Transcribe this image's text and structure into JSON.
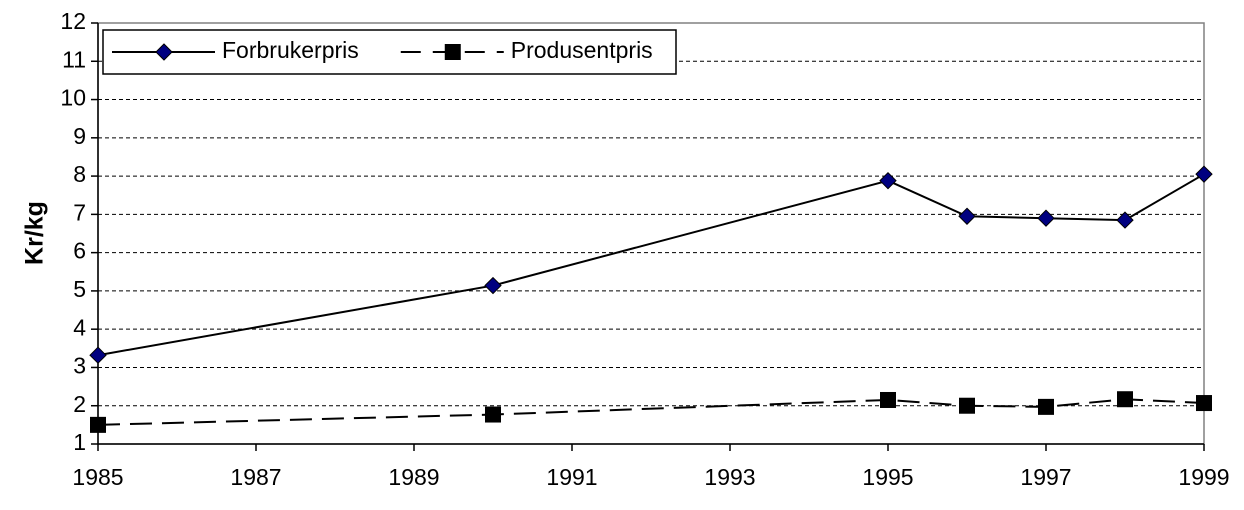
{
  "chart_data": {
    "type": "line",
    "y_label": "Kr/kg",
    "x": [
      1985,
      1990,
      1995,
      1996,
      1997,
      1998,
      1999
    ],
    "series": [
      {
        "name": "Forbrukerpris",
        "color": "#000000",
        "marker": "diamond",
        "marker_color": "#000080",
        "line_style": "solid",
        "values": [
          3.32,
          5.14,
          7.88,
          6.95,
          6.9,
          6.85,
          8.05
        ]
      },
      {
        "name": "Produsentpris",
        "color": "#000000",
        "marker": "square",
        "marker_color": "#000000",
        "line_style": "dashed",
        "values": [
          1.5,
          1.77,
          2.15,
          2.0,
          1.97,
          2.17,
          2.07
        ]
      }
    ],
    "xlim": [
      1985,
      1999
    ],
    "xticks": [
      1985,
      1987,
      1989,
      1991,
      1993,
      1995,
      1997,
      1999
    ],
    "ylim": [
      1,
      12
    ],
    "yticks": [
      1,
      2,
      3,
      4,
      5,
      6,
      7,
      8,
      9,
      10,
      11,
      12
    ],
    "grid": true,
    "legend": "upper left"
  }
}
